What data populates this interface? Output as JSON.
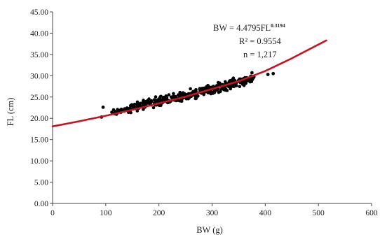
{
  "chart_data": {
    "type": "scatter",
    "title": "",
    "xlabel": "BW (g)",
    "ylabel": "FL (cm)",
    "xlim": [
      0,
      600
    ],
    "ylim": [
      0,
      45
    ],
    "x_ticks": [
      0,
      100,
      200,
      300,
      400,
      500,
      600
    ],
    "y_ticks": [
      0,
      5,
      10,
      15,
      20,
      25,
      30,
      35,
      40,
      45
    ],
    "x_tick_labels": [
      "0",
      "100",
      "200",
      "300",
      "400",
      "500",
      "600"
    ],
    "y_tick_labels": [
      "0.00",
      "5.00",
      "10.00",
      "15.00",
      "20.00",
      "25.00",
      "30.00",
      "35.00",
      "40.00",
      "45.00"
    ],
    "grid": false,
    "legend": "none",
    "annotation": {
      "equation_main": "BW = 4.4795FL",
      "equation_exp": "0.3194",
      "r2": "R² = 0.9554",
      "n": "n = 1,217"
    },
    "fit_line": {
      "color": "#c8141e",
      "curve": [
        [
          0,
          18.1
        ],
        [
          50,
          19.3
        ],
        [
          100,
          20.6
        ],
        [
          150,
          22.0
        ],
        [
          200,
          23.5
        ],
        [
          250,
          25.1
        ],
        [
          300,
          26.9
        ],
        [
          350,
          28.7
        ],
        [
          400,
          31.1
        ],
        [
          450,
          34.1
        ],
        [
          515,
          38.3
        ]
      ]
    },
    "points_color": "#000000",
    "scatter_bands": [
      {
        "x": 95,
        "ylo": 22.3,
        "yhi": 22.9
      },
      {
        "x": 115,
        "ylo": 20.6,
        "yhi": 22.4
      },
      {
        "x": 140,
        "ylo": 20.8,
        "yhi": 23.3
      },
      {
        "x": 165,
        "ylo": 21.5,
        "yhi": 24.6
      },
      {
        "x": 190,
        "ylo": 22.2,
        "yhi": 25.3
      },
      {
        "x": 215,
        "ylo": 22.8,
        "yhi": 26.0
      },
      {
        "x": 240,
        "ylo": 23.5,
        "yhi": 26.7
      },
      {
        "x": 265,
        "ylo": 24.3,
        "yhi": 27.4
      },
      {
        "x": 290,
        "ylo": 25.0,
        "yhi": 28.1
      },
      {
        "x": 315,
        "ylo": 25.8,
        "yhi": 28.9
      },
      {
        "x": 340,
        "ylo": 26.6,
        "yhi": 29.8
      },
      {
        "x": 365,
        "ylo": 27.5,
        "yhi": 30.5
      },
      {
        "x": 380,
        "ylo": 28.3,
        "yhi": 30.2
      }
    ],
    "outliers": [
      [
        95,
        22.6
      ],
      [
        92,
        20.3
      ],
      [
        405,
        30.3
      ],
      [
        415,
        30.5
      ],
      [
        375,
        30.7
      ]
    ]
  }
}
